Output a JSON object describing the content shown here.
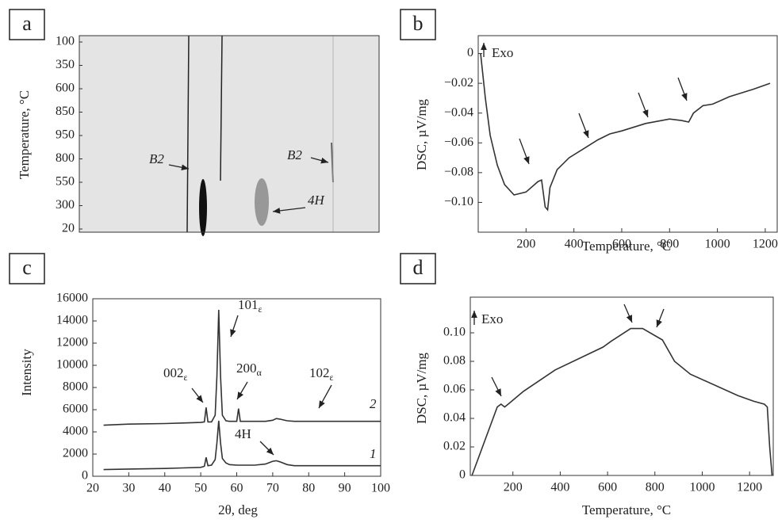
{
  "chart_data": [
    {
      "type": "map",
      "panel": "a",
      "y_label": "Temperature, °C",
      "categories": [
        "100",
        "350",
        "600",
        "850",
        "950",
        "800",
        "550",
        "300",
        "20"
      ],
      "annotations": [
        "B2",
        "B2",
        "4H"
      ]
    },
    {
      "type": "line",
      "panel": "b",
      "x_label": "Temperature, °C",
      "y_label": "DSC, µV/mg",
      "annotations": [
        "Exo"
      ],
      "xlim": [
        0,
        1250
      ],
      "ylim": [
        -0.12,
        0.012
      ],
      "xticks": [
        200,
        400,
        600,
        800,
        1000,
        1200
      ],
      "yticks": [
        0,
        {
          "value": -0.02,
          "label": "−0.02"
        },
        {
          "value": -0.04,
          "label": "−0.04"
        },
        {
          "value": -0.06,
          "label": "−0.06"
        },
        {
          "value": -0.08,
          "label": "−0.08"
        },
        {
          "value": -0.1,
          "label": "−0.10"
        }
      ],
      "x": [
        10,
        30,
        50,
        80,
        110,
        150,
        200,
        250,
        265,
        280,
        290,
        300,
        330,
        380,
        450,
        500,
        550,
        600,
        700,
        800,
        850,
        880,
        900,
        940,
        980,
        1050,
        1150,
        1220
      ],
      "series": [
        {
          "color": "#333333",
          "values": [
            0,
            -0.03,
            -0.055,
            -0.075,
            -0.088,
            -0.095,
            -0.093,
            -0.086,
            -0.085,
            -0.103,
            -0.105,
            -0.09,
            -0.078,
            -0.07,
            -0.063,
            -0.058,
            -0.054,
            -0.052,
            -0.047,
            -0.044,
            -0.045,
            -0.046,
            -0.04,
            -0.035,
            -0.034,
            -0.029,
            -0.024,
            -0.02
          ]
        }
      ]
    },
    {
      "type": "line",
      "panel": "c",
      "x_label": "2θ, deg",
      "y_label": "Intensity",
      "annotations": [
        {
          "text": "002",
          "sub": "ε"
        },
        {
          "text": "101",
          "sub": "ε"
        },
        {
          "text": "200",
          "sub": "α"
        },
        {
          "text": "102",
          "sub": "ε"
        },
        {
          "text": "4H"
        }
      ],
      "xlim": [
        20,
        100
      ],
      "ylim": [
        0,
        16000
      ],
      "xticks": [
        20,
        30,
        40,
        50,
        60,
        70,
        80,
        90,
        100
      ],
      "yticks": [
        0,
        2000,
        4000,
        6000,
        8000,
        10000,
        12000,
        14000,
        16000
      ],
      "x": [
        23,
        30,
        40,
        45,
        50,
        51,
        51.5,
        52,
        53,
        54,
        54.5,
        55,
        55.5,
        56,
        57,
        58,
        60,
        60.5,
        61,
        62,
        65,
        68,
        70,
        71,
        72,
        74,
        76,
        80,
        90,
        100
      ],
      "series": [
        {
          "name": "2",
          "color": "#333333",
          "values": [
            4600,
            4700,
            4750,
            4800,
            4850,
            4900,
            6200,
            4900,
            4900,
            5500,
            9000,
            15000,
            9000,
            5500,
            5000,
            4950,
            4950,
            6100,
            4950,
            4950,
            4950,
            4950,
            5050,
            5200,
            5150,
            5000,
            4950,
            4950,
            4950,
            4950
          ]
        },
        {
          "name": "1",
          "color": "#333333",
          "values": [
            600,
            650,
            700,
            750,
            800,
            900,
            1700,
            950,
            1000,
            1500,
            3000,
            5000,
            3000,
            1600,
            1200,
            1050,
            1000,
            1000,
            1000,
            1000,
            1000,
            1100,
            1350,
            1400,
            1300,
            1050,
            950,
            950,
            950,
            950
          ]
        }
      ]
    },
    {
      "type": "line",
      "panel": "d",
      "x_label": "Temperature, °C",
      "y_label": "DSC, µV/mg",
      "annotations": [
        "Exo"
      ],
      "xlim": [
        20,
        1300
      ],
      "ylim": [
        0,
        0.125
      ],
      "xticks": [
        200,
        400,
        600,
        800,
        1000,
        1200
      ],
      "yticks": [
        0,
        0.02,
        0.04,
        0.06,
        0.08,
        {
          "value": 0.1,
          "label": "0.10"
        }
      ],
      "x": [
        27,
        134,
        150,
        165,
        180,
        245,
        379,
        581,
        614,
        698,
        748,
        832,
        883,
        950,
        1151,
        1218,
        1262,
        1275,
        1285,
        1295
      ],
      "series": [
        {
          "color": "#333333",
          "values": [
            0,
            0.048,
            0.05,
            0.048,
            0.05,
            0.059,
            0.074,
            0.09,
            0.094,
            0.103,
            0.103,
            0.095,
            0.08,
            0.071,
            0.056,
            0.052,
            0.05,
            0.048,
            0.02,
            0
          ]
        }
      ]
    }
  ]
}
